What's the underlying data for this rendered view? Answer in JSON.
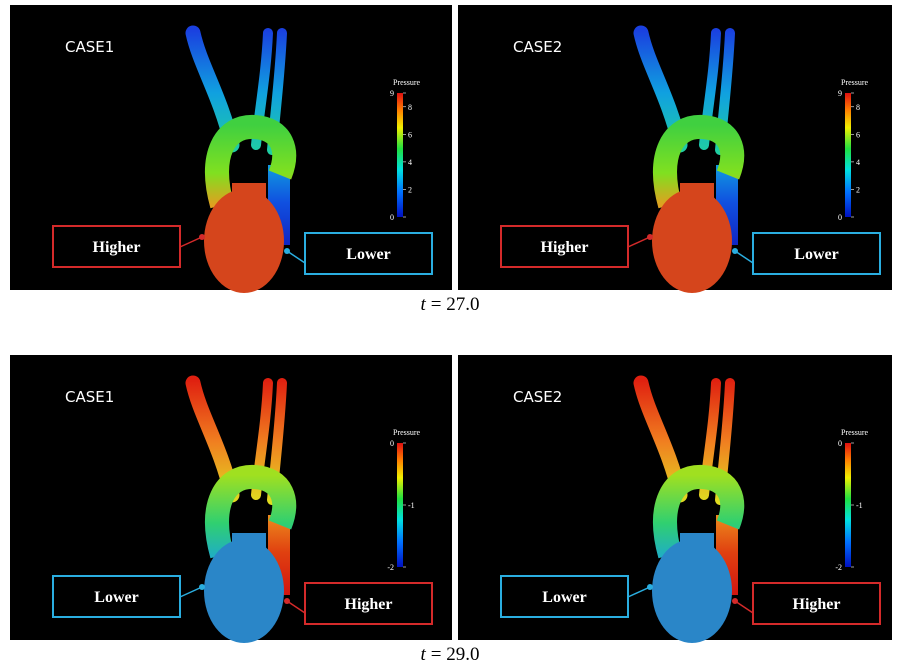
{
  "rows": [
    {
      "caption_var": "t",
      "caption_value": "= 27.0",
      "panels": [
        {
          "label": "CASE1",
          "legend_title": "Pressure",
          "colorbar": {
            "lim": [
              0,
              9
            ],
            "ticks": [
              0,
              2,
              4,
              6,
              8,
              9
            ]
          },
          "callouts": [
            {
              "text": "Higher",
              "color": "#d42a2a"
            },
            {
              "text": "Lower",
              "color": "#2aaee0"
            }
          ]
        },
        {
          "label": "CASE2",
          "legend_title": "Pressure",
          "colorbar": {
            "lim": [
              0,
              9
            ],
            "ticks": [
              0,
              2,
              4,
              6,
              8,
              9
            ]
          },
          "callouts": [
            {
              "text": "Higher",
              "color": "#d42a2a"
            },
            {
              "text": "Lower",
              "color": "#2aaee0"
            }
          ]
        }
      ]
    },
    {
      "caption_var": "t",
      "caption_value": "= 29.0",
      "panels": [
        {
          "label": "CASE1",
          "legend_title": "Pressure",
          "colorbar": {
            "lim": [
              -2,
              0
            ],
            "ticks": [
              -2,
              -1,
              0
            ]
          },
          "callouts": [
            {
              "text": "Lower",
              "color": "#2aaee0"
            },
            {
              "text": "Higher",
              "color": "#d42a2a"
            }
          ]
        },
        {
          "label": "CASE2",
          "legend_title": "Pressure",
          "colorbar": {
            "lim": [
              -2,
              0
            ],
            "ticks": [
              -2,
              -1,
              0
            ]
          },
          "callouts": [
            {
              "text": "Lower",
              "color": "#2aaee0"
            },
            {
              "text": "Higher",
              "color": "#d42a2a"
            }
          ]
        }
      ]
    }
  ]
}
